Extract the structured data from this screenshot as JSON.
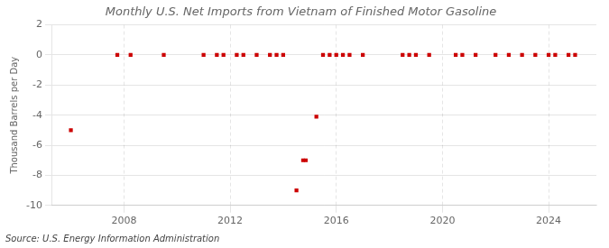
{
  "chart_data": {
    "type": "scatter",
    "title": "Monthly U.S. Net Imports from Vietnam of Finished Motor Gasoline",
    "ylabel": "Thousand Barrels per Day",
    "source": "Source: U.S. Energy Information Administration",
    "color": "#cc0000",
    "marker": "square",
    "grid": true,
    "xlim": [
      2005.3,
      2025.8
    ],
    "xticks": [
      2008,
      2012,
      2016,
      2020,
      2024
    ],
    "ylim": [
      -10,
      2
    ],
    "yticks": [
      -10,
      -8,
      -6,
      -4,
      -2,
      0,
      2
    ],
    "x": [
      2006.0,
      2007.75,
      2008.25,
      2009.5,
      2011.0,
      2011.5,
      2011.75,
      2012.25,
      2012.5,
      2013.0,
      2013.5,
      2013.75,
      2014.0,
      2014.5,
      2014.75,
      2014.85,
      2015.25,
      2015.5,
      2015.75,
      2016.0,
      2016.25,
      2016.5,
      2017.0,
      2018.5,
      2018.75,
      2019.0,
      2019.5,
      2020.5,
      2020.75,
      2021.25,
      2022.0,
      2022.5,
      2023.0,
      2023.5,
      2024.0,
      2024.25,
      2024.75,
      2025.0
    ],
    "values": [
      -5.0,
      0.0,
      0.0,
      0.0,
      0.0,
      0.0,
      0.0,
      0.0,
      0.0,
      0.0,
      0.0,
      0.0,
      0.0,
      -9.0,
      -7.0,
      -7.0,
      -4.1,
      0.0,
      0.0,
      0.0,
      0.0,
      0.0,
      0.0,
      0.0,
      0.0,
      0.0,
      0.0,
      0.0,
      0.0,
      0.0,
      0.0,
      0.0,
      0.0,
      0.0,
      0.0,
      0.0,
      0.0,
      0.0
    ]
  }
}
